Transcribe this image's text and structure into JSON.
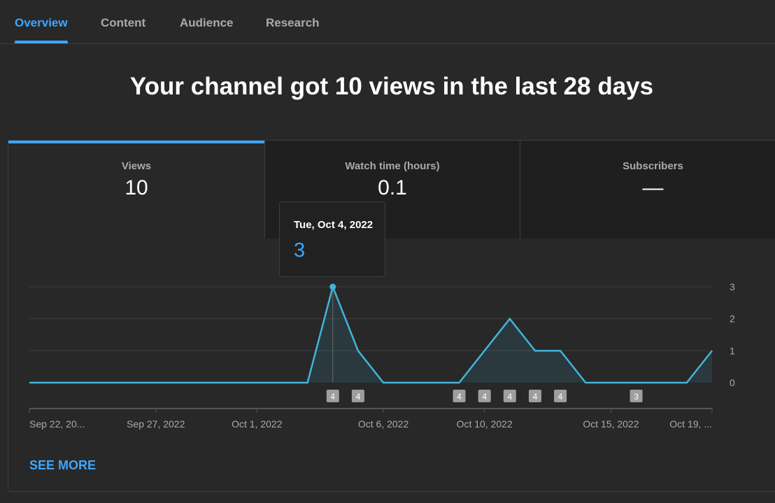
{
  "tabs": [
    {
      "label": "Overview",
      "active": true
    },
    {
      "label": "Content",
      "active": false
    },
    {
      "label": "Audience",
      "active": false
    },
    {
      "label": "Research",
      "active": false
    }
  ],
  "headline": "Your channel got 10 views in the last 28 days",
  "metrics": [
    {
      "label": "Views",
      "value": "10"
    },
    {
      "label": "Watch time (hours)",
      "value": "0.1"
    },
    {
      "label": "Subscribers",
      "value": "—"
    }
  ],
  "tooltip": {
    "date": "Tue, Oct 4, 2022",
    "value": "3"
  },
  "see_more_label": "SEE MORE",
  "colors": {
    "accent": "#3ea6ff",
    "line": "#41b4d9",
    "background": "#282828",
    "marker": "#9e9e9e"
  },
  "chart_data": {
    "type": "area",
    "x": [
      "2022-09-22",
      "2022-09-23",
      "2022-09-24",
      "2022-09-25",
      "2022-09-26",
      "2022-09-27",
      "2022-09-28",
      "2022-09-29",
      "2022-09-30",
      "2022-10-01",
      "2022-10-02",
      "2022-10-03",
      "2022-10-04",
      "2022-10-05",
      "2022-10-06",
      "2022-10-07",
      "2022-10-08",
      "2022-10-09",
      "2022-10-10",
      "2022-10-11",
      "2022-10-12",
      "2022-10-13",
      "2022-10-14",
      "2022-10-15",
      "2022-10-16",
      "2022-10-17",
      "2022-10-18",
      "2022-10-19"
    ],
    "series": [
      {
        "values": [
          0,
          0,
          0,
          0,
          0,
          0,
          0,
          0,
          0,
          0,
          0,
          0,
          3,
          1,
          0,
          0,
          0,
          0,
          1,
          2,
          1,
          1,
          0,
          0,
          0,
          0,
          0,
          1
        ]
      }
    ],
    "x_tick_labels": [
      {
        "x": "2022-09-22",
        "label": "Sep 22, 20..."
      },
      {
        "x": "2022-09-27",
        "label": "Sep 27, 2022"
      },
      {
        "x": "2022-10-01",
        "label": "Oct 1, 2022"
      },
      {
        "x": "2022-10-06",
        "label": "Oct 6, 2022"
      },
      {
        "x": "2022-10-10",
        "label": "Oct 10, 2022"
      },
      {
        "x": "2022-10-15",
        "label": "Oct 15, 2022"
      },
      {
        "x": "2022-10-19",
        "label": "Oct 19, ..."
      }
    ],
    "y_ticks": [
      0,
      1,
      2,
      3
    ],
    "ylim": [
      0,
      3
    ],
    "y_axis_side": "right",
    "grid": true,
    "highlighted_point": {
      "x": "2022-10-04",
      "y": 3
    },
    "upload_markers": [
      {
        "x": "2022-10-04",
        "label": "4"
      },
      {
        "x": "2022-10-05",
        "label": "4"
      },
      {
        "x": "2022-10-09",
        "label": "4"
      },
      {
        "x": "2022-10-10",
        "label": "4"
      },
      {
        "x": "2022-10-11",
        "label": "4"
      },
      {
        "x": "2022-10-12",
        "label": "4"
      },
      {
        "x": "2022-10-13",
        "label": "4"
      },
      {
        "x": "2022-10-16",
        "label": "3"
      }
    ]
  }
}
